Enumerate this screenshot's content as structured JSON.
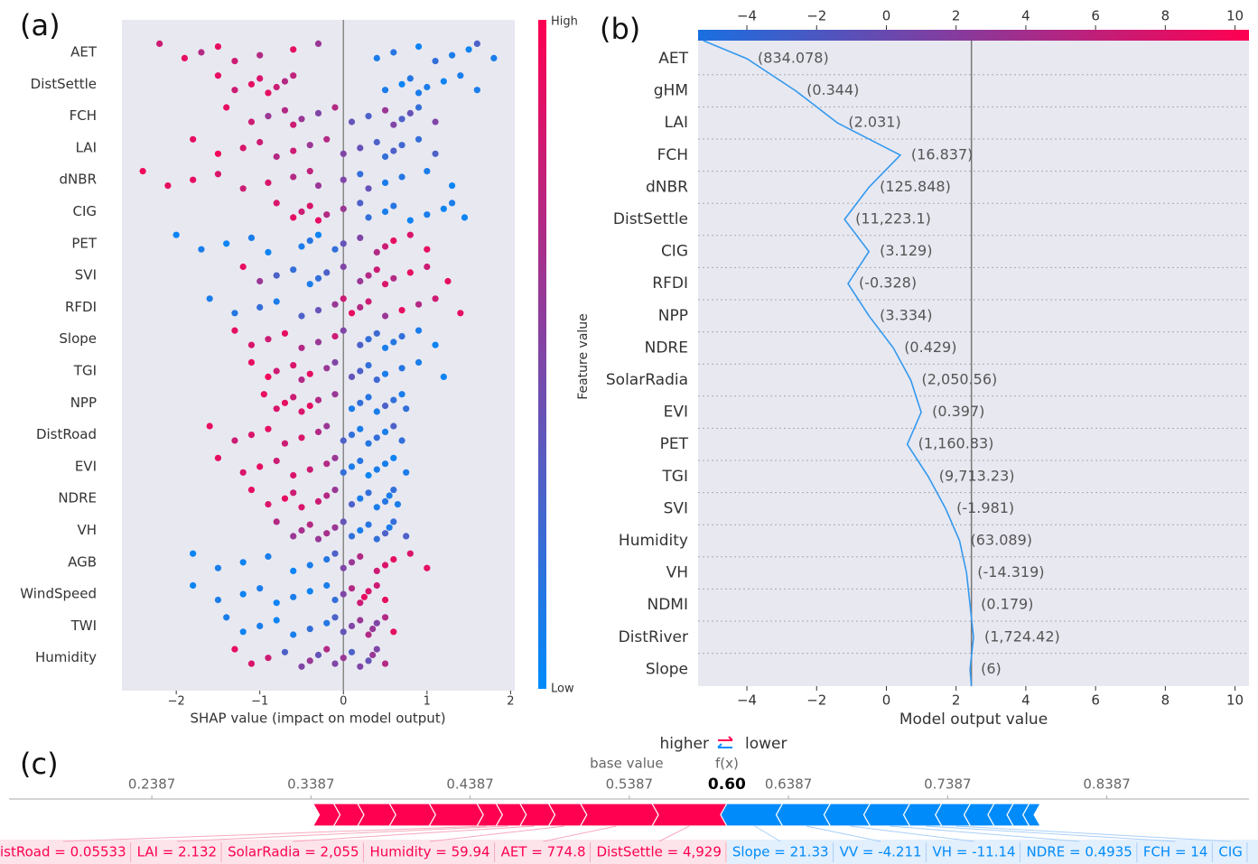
{
  "chart_data": [
    {
      "type": "beeswarm",
      "panel_label": "(a)",
      "xlabel": "SHAP value (impact on model output)",
      "colorbar_label": "Feature value",
      "colorbar_high": "High",
      "colorbar_low": "Low",
      "colors": [
        "#008bfb",
        "#ff0051"
      ],
      "xlim": [
        -2.65,
        2.05
      ],
      "xticks": [
        {
          "value": -2,
          "label": "−2"
        },
        {
          "value": -1,
          "label": "−1"
        },
        0,
        1,
        2
      ],
      "features": [
        {
          "name": "AET",
          "values": [
            -2.2,
            -1.9,
            -1.7,
            -1.5,
            -1.3,
            -1.0,
            -0.6,
            -0.3,
            0.4,
            0.6,
            0.9,
            1.1,
            1.3,
            1.5,
            1.6,
            1.8
          ],
          "feature_values": [
            0.8,
            0.9,
            0.7,
            0.9,
            0.8,
            0.7,
            0.9,
            0.6,
            0.1,
            0.15,
            0.05,
            0.2,
            0.1,
            0.05,
            0.3,
            0.1
          ]
        },
        {
          "name": "DistSettle",
          "values": [
            -1.5,
            -1.3,
            -1.1,
            -1.0,
            -0.9,
            -0.8,
            -0.7,
            -0.6,
            0.5,
            0.7,
            0.8,
            0.9,
            1.0,
            1.2,
            1.4,
            1.6
          ],
          "feature_values": [
            0.9,
            0.8,
            0.9,
            0.85,
            0.9,
            0.8,
            0.7,
            0.75,
            0.1,
            0.05,
            0.15,
            0.1,
            0.1,
            0.05,
            0.1,
            0.1
          ]
        },
        {
          "name": "FCH",
          "values": [
            -1.4,
            -1.1,
            -0.9,
            -0.7,
            -0.6,
            -0.5,
            -0.3,
            -0.1,
            0.1,
            0.3,
            0.5,
            0.6,
            0.7,
            0.8,
            0.9,
            1.1
          ],
          "feature_values": [
            0.9,
            0.8,
            0.6,
            0.7,
            0.8,
            0.6,
            0.5,
            0.7,
            0.4,
            0.3,
            0.6,
            0.5,
            0.3,
            0.4,
            0.2,
            0.5
          ]
        },
        {
          "name": "LAI",
          "values": [
            -1.8,
            -1.5,
            -1.2,
            -1.0,
            -0.8,
            -0.6,
            -0.4,
            -0.2,
            0.0,
            0.2,
            0.4,
            0.5,
            0.6,
            0.7,
            0.9,
            1.1
          ],
          "feature_values": [
            0.9,
            0.95,
            0.85,
            0.8,
            0.7,
            0.8,
            0.6,
            0.7,
            0.5,
            0.4,
            0.3,
            0.2,
            0.3,
            0.25,
            0.2,
            0.3
          ]
        },
        {
          "name": "dNBR",
          "values": [
            -2.4,
            -2.1,
            -1.8,
            -1.5,
            -1.2,
            -0.9,
            -0.6,
            -0.4,
            -0.3,
            0.0,
            0.2,
            0.3,
            0.5,
            0.7,
            1.0,
            1.3
          ],
          "feature_values": [
            0.95,
            0.9,
            0.9,
            0.85,
            0.8,
            0.85,
            0.7,
            0.75,
            0.6,
            0.5,
            0.2,
            0.4,
            0.1,
            0.15,
            0.1,
            0.05
          ]
        },
        {
          "name": "CIG",
          "values": [
            -0.8,
            -0.6,
            -0.5,
            -0.4,
            -0.3,
            -0.2,
            0.0,
            0.2,
            0.3,
            0.5,
            0.6,
            0.8,
            1.0,
            1.2,
            1.3,
            1.45
          ],
          "feature_values": [
            0.85,
            0.9,
            0.8,
            0.85,
            0.9,
            0.7,
            0.6,
            0.3,
            0.2,
            0.1,
            0.15,
            0.05,
            0.1,
            0.05,
            0.1,
            0.05
          ]
        },
        {
          "name": "PET",
          "values": [
            -2.0,
            -1.7,
            -1.4,
            -1.1,
            -0.9,
            -0.5,
            -0.4,
            -0.3,
            -0.1,
            0.0,
            0.2,
            0.4,
            0.5,
            0.6,
            0.8,
            1.0
          ],
          "feature_values": [
            0.05,
            0.1,
            0.05,
            0.1,
            0.05,
            0.1,
            0.15,
            0.05,
            0.2,
            0.4,
            0.5,
            0.7,
            0.8,
            0.9,
            0.85,
            0.9
          ]
        },
        {
          "name": "SVI",
          "values": [
            -1.2,
            -1.0,
            -0.8,
            -0.6,
            -0.4,
            -0.3,
            -0.2,
            0.0,
            0.2,
            0.3,
            0.4,
            0.5,
            0.6,
            0.8,
            1.0,
            1.25
          ],
          "feature_values": [
            0.9,
            0.6,
            0.3,
            0.2,
            0.1,
            0.2,
            0.3,
            0.5,
            0.6,
            0.7,
            0.8,
            0.85,
            0.7,
            0.9,
            0.8,
            0.9
          ]
        },
        {
          "name": "RFDI",
          "values": [
            -1.6,
            -1.3,
            -1.0,
            -0.8,
            -0.5,
            -0.3,
            -0.1,
            0.0,
            0.1,
            0.2,
            0.3,
            0.5,
            0.7,
            0.9,
            1.1,
            1.4
          ],
          "feature_values": [
            0.1,
            0.15,
            0.2,
            0.1,
            0.3,
            0.4,
            0.6,
            0.8,
            0.9,
            0.7,
            0.8,
            0.6,
            0.9,
            0.7,
            0.8,
            0.9
          ]
        },
        {
          "name": "Slope",
          "values": [
            -1.3,
            -1.1,
            -0.9,
            -0.7,
            -0.5,
            -0.3,
            -0.1,
            0.0,
            0.2,
            0.3,
            0.4,
            0.5,
            0.6,
            0.7,
            0.9,
            1.1
          ],
          "feature_values": [
            0.9,
            0.85,
            0.8,
            0.9,
            0.7,
            0.6,
            0.8,
            0.5,
            0.3,
            0.2,
            0.25,
            0.1,
            0.15,
            0.2,
            0.1,
            0.05
          ]
        },
        {
          "name": "TGI",
          "values": [
            -1.1,
            -0.9,
            -0.8,
            -0.6,
            -0.5,
            -0.4,
            -0.2,
            -0.1,
            0.1,
            0.2,
            0.3,
            0.4,
            0.5,
            0.7,
            0.9,
            1.2
          ],
          "feature_values": [
            0.9,
            0.95,
            0.8,
            0.85,
            0.7,
            0.9,
            0.6,
            0.5,
            0.4,
            0.3,
            0.2,
            0.25,
            0.1,
            0.15,
            0.1,
            0.05
          ]
        },
        {
          "name": "NPP",
          "values": [
            -0.95,
            -0.8,
            -0.7,
            -0.6,
            -0.5,
            -0.4,
            -0.3,
            -0.1,
            0.1,
            0.2,
            0.3,
            0.4,
            0.5,
            0.6,
            0.7,
            0.75
          ],
          "feature_values": [
            0.9,
            0.85,
            0.9,
            0.8,
            0.85,
            0.9,
            0.7,
            0.6,
            0.1,
            0.2,
            0.15,
            0.1,
            0.3,
            0.2,
            0.1,
            0.2
          ]
        },
        {
          "name": "DistRoad",
          "values": [
            -1.6,
            -1.3,
            -1.1,
            -0.9,
            -0.7,
            -0.5,
            -0.3,
            -0.2,
            0.0,
            0.1,
            0.2,
            0.3,
            0.4,
            0.5,
            0.6,
            0.7
          ],
          "feature_values": [
            0.9,
            0.8,
            0.85,
            0.9,
            0.8,
            0.85,
            0.7,
            0.6,
            0.3,
            0.2,
            0.1,
            0.15,
            0.2,
            0.1,
            0.3,
            0.2
          ]
        },
        {
          "name": "EVI",
          "values": [
            -1.5,
            -1.2,
            -1.0,
            -0.8,
            -0.6,
            -0.4,
            -0.2,
            -0.1,
            0.0,
            0.1,
            0.2,
            0.3,
            0.4,
            0.5,
            0.6,
            0.75
          ],
          "feature_values": [
            0.9,
            0.85,
            0.9,
            0.8,
            0.85,
            0.8,
            0.7,
            0.6,
            0.2,
            0.1,
            0.15,
            0.05,
            0.1,
            0.1,
            0.05,
            0.1
          ]
        },
        {
          "name": "NDRE",
          "values": [
            -1.1,
            -0.9,
            -0.7,
            -0.6,
            -0.5,
            -0.3,
            -0.2,
            -0.1,
            0.1,
            0.2,
            0.3,
            0.4,
            0.5,
            0.55,
            0.6,
            0.65
          ],
          "feature_values": [
            0.9,
            0.85,
            0.9,
            0.8,
            0.85,
            0.8,
            0.7,
            0.6,
            0.3,
            0.1,
            0.2,
            0.1,
            0.15,
            0.1,
            0.2,
            0.1
          ]
        },
        {
          "name": "VH",
          "values": [
            -0.8,
            -0.6,
            -0.5,
            -0.4,
            -0.3,
            -0.2,
            -0.1,
            0.0,
            0.1,
            0.2,
            0.3,
            0.4,
            0.5,
            0.55,
            0.6,
            0.75
          ],
          "feature_values": [
            0.7,
            0.6,
            0.65,
            0.7,
            0.6,
            0.65,
            0.6,
            0.4,
            0.2,
            0.1,
            0.15,
            0.2,
            0.3,
            0.1,
            0.2,
            0.3
          ]
        },
        {
          "name": "AGB",
          "values": [
            -1.8,
            -1.5,
            -1.2,
            -0.9,
            -0.6,
            -0.4,
            -0.2,
            -0.1,
            0.0,
            0.1,
            0.2,
            0.4,
            0.5,
            0.6,
            0.8,
            1.0
          ],
          "feature_values": [
            0.05,
            0.1,
            0.05,
            0.1,
            0.05,
            0.1,
            0.15,
            0.3,
            0.5,
            0.6,
            0.7,
            0.8,
            0.85,
            0.9,
            0.85,
            0.9
          ]
        },
        {
          "name": "WindSpeed",
          "values": [
            -1.8,
            -1.5,
            -1.2,
            -1.0,
            -0.8,
            -0.6,
            -0.4,
            -0.2,
            -0.1,
            0.0,
            0.1,
            0.2,
            0.25,
            0.3,
            0.4,
            0.5
          ],
          "feature_values": [
            0.05,
            0.1,
            0.05,
            0.1,
            0.05,
            0.1,
            0.05,
            0.1,
            0.2,
            0.5,
            0.7,
            0.8,
            0.9,
            0.85,
            0.8,
            0.9
          ]
        },
        {
          "name": "TWI",
          "values": [
            -1.4,
            -1.2,
            -1.0,
            -0.8,
            -0.6,
            -0.4,
            -0.2,
            -0.1,
            0.0,
            0.1,
            0.2,
            0.3,
            0.35,
            0.4,
            0.5,
            0.6
          ],
          "feature_values": [
            0.1,
            0.05,
            0.1,
            0.05,
            0.1,
            0.2,
            0.15,
            0.3,
            0.4,
            0.5,
            0.6,
            0.7,
            0.6,
            0.5,
            0.7,
            0.9
          ]
        },
        {
          "name": "Humidity",
          "values": [
            -1.3,
            -1.1,
            -0.9,
            -0.7,
            -0.5,
            -0.4,
            -0.3,
            -0.2,
            -0.1,
            0.0,
            0.1,
            0.2,
            0.3,
            0.35,
            0.4,
            0.5
          ],
          "feature_values": [
            0.9,
            0.85,
            0.8,
            0.3,
            0.5,
            0.6,
            0.4,
            0.7,
            0.5,
            0.6,
            0.3,
            0.5,
            0.4,
            0.6,
            0.5,
            0.7
          ]
        }
      ]
    },
    {
      "type": "decision",
      "panel_label": "(b)",
      "xlabel": "Model output value",
      "colors": [
        "#1a6fe0",
        "#ff0051"
      ],
      "line_color": "#3399ee",
      "xlim": [
        -5.4,
        10.4
      ],
      "xticks": [
        {
          "value": -4,
          "label": "−4"
        },
        {
          "value": -2,
          "label": "−2"
        },
        0,
        2,
        4,
        6,
        8,
        10
      ],
      "features": [
        "AET",
        "gHM",
        "LAI",
        "FCH",
        "dNBR",
        "DistSettle",
        "CIG",
        "RFDI",
        "NPP",
        "NDRE",
        "SolarRadia",
        "EVI",
        "PET",
        "TGI",
        "SVI",
        "Humidity",
        "VH",
        "NDMI",
        "DistRiver",
        "Slope"
      ],
      "feature_value_labels": [
        "(834.078)",
        "(0.344)",
        "(2.031)",
        "(16.837)",
        "(125.848)",
        "(11,223.1)",
        "(3.129)",
        "(-0.328)",
        "(3.334)",
        "(0.429)",
        "(2,050.56)",
        "(0.397)",
        "(1,160.83)",
        "(9,713.23)",
        "(-1.981)",
        "(63.089)",
        "(-14.319)",
        "(0.179)",
        "(1,724.42)",
        "(6)"
      ],
      "values": [
        -4.0,
        -2.6,
        -1.4,
        0.4,
        -0.5,
        -1.2,
        -0.5,
        -1.1,
        -0.5,
        0.2,
        0.7,
        1.0,
        0.6,
        1.2,
        1.7,
        2.1,
        2.3,
        2.4,
        2.5,
        2.4
      ],
      "output_value": -5.25,
      "expected_value": 2.44
    },
    {
      "type": "force",
      "panel_label": "(c)",
      "higher_label": "higher",
      "lower_label": "lower",
      "base_value_label": "base value",
      "fx_label": "f(x)",
      "output_value": {
        "value": 0.6,
        "label": "0.60"
      },
      "colors": [
        "#008bfb",
        "#ff0051"
      ],
      "xlim": [
        0.149,
        0.928
      ],
      "xticks": [
        0.2387,
        0.3387,
        0.4387,
        0.5387,
        0.6387,
        0.7387,
        0.8387
      ],
      "higher": [
        {
          "label": null,
          "value": 0.013
        },
        {
          "label": null,
          "value": 0.015
        },
        {
          "label": null,
          "value": 0.02
        },
        {
          "label": null,
          "value": 0.025
        },
        {
          "label": null,
          "value": 0.03
        },
        {
          "label": "istRoad = 0.05533",
          "value": 0.012
        },
        {
          "label": "LAI = 2.132",
          "value": 0.015
        },
        {
          "label": "SolarRadia = 2,055",
          "value": 0.018
        },
        {
          "label": "Humidity = 59.94",
          "value": 0.02
        },
        {
          "label": "AET = 774.8",
          "value": 0.045
        },
        {
          "label": "DistSettle = 4,929",
          "value": 0.047
        }
      ],
      "lower": [
        {
          "label": "Slope = 21.33",
          "value": 0.035
        },
        {
          "label": "VV = -4.211",
          "value": 0.03
        },
        {
          "label": "VH = -11.14",
          "value": 0.025
        },
        {
          "label": "NDRE = 0.4935",
          "value": 0.025
        },
        {
          "label": "FCH = 14",
          "value": 0.02
        },
        {
          "label": "CIG",
          "value": 0.018
        },
        {
          "label": null,
          "value": 0.015
        },
        {
          "label": null,
          "value": 0.012
        },
        {
          "label": null,
          "value": 0.01
        },
        {
          "label": null,
          "value": 0.007
        }
      ]
    }
  ]
}
